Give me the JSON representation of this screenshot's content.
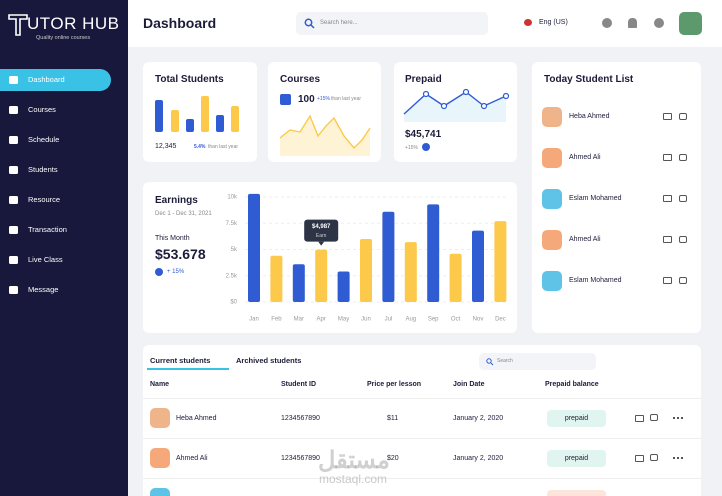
{
  "sidebar": {
    "logo": "UTOR HUB",
    "tagline": "Quality online courses",
    "menu": [
      "Dashboard",
      "Courses",
      "Schedule",
      "Students",
      "Resource",
      "Transaction",
      "Live Class",
      "Message"
    ]
  },
  "header": {
    "title": "Dashboard",
    "search": "Search here...",
    "language": "Eng (US)"
  },
  "total_students": {
    "title": "Total Students",
    "count": "12,345",
    "change": "5.4%",
    "change_text": "than last year"
  },
  "courses": {
    "title": "Courses",
    "count": "100",
    "change": "+15%",
    "change_text": "than last year"
  },
  "prepaid": {
    "title": "Prepaid",
    "amount": "$45,741",
    "change": "+15%"
  },
  "today_list": {
    "title": "Today Student List",
    "students": [
      "Heba Ahmed",
      "Ahmed Ali",
      "Eslam Mohamed",
      "Ahmed Ali",
      "Eslam Mohamed"
    ]
  },
  "earnings": {
    "title": "Earnings",
    "period": "Dec 1 - Dec 31, 2021",
    "month_label": "This Month",
    "amount": "$53.678",
    "change": "+ 15%",
    "categories": [
      "Jan",
      "Feb",
      "Mar",
      "Apr",
      "May",
      "Jun",
      "Jul",
      "Aug",
      "Sep",
      "Oct",
      "Nov",
      "Dec"
    ],
    "values": [
      10300,
      4400,
      3600,
      4987,
      2900,
      6000,
      8600,
      5700,
      9300,
      4600,
      6800,
      7700
    ],
    "colors": [
      "#2f5bd3",
      "#fcc94a",
      "#2f5bd3",
      "#fcc94a",
      "#2f5bd3",
      "#fcc94a",
      "#2f5bd3",
      "#fcc94a",
      "#2f5bd3",
      "#fcc94a",
      "#2f5bd3",
      "#fcc94a"
    ],
    "ylim": [
      0,
      10000
    ],
    "yticks": [
      {
        "value": 0,
        "label": "$0"
      },
      {
        "value": 2500,
        "label": "2.5k"
      },
      {
        "value": 5000,
        "label": "5k"
      },
      {
        "value": 7500,
        "label": "7.5k"
      },
      {
        "value": 10000,
        "label": "10k"
      }
    ],
    "grid": true,
    "tooltip": {
      "label": "$4,987",
      "sublabel": "Earn"
    }
  },
  "table": {
    "tabs": [
      "Current students",
      "Archived students"
    ],
    "search": "Search",
    "columns": [
      "Name",
      "Student ID",
      "Price per lesson",
      "Join Date",
      "Prepaid balance"
    ],
    "rows": [
      [
        "Heba Ahmed",
        "1234567890",
        "$11",
        "January 2, 2020",
        "prepaid"
      ],
      [
        "Ahmed Ali",
        "1234567890",
        "$20",
        "January 2, 2020",
        "prepaid"
      ]
    ]
  },
  "watermark": {
    "arabic": "مستقل",
    "latin": "mostaql.com"
  }
}
